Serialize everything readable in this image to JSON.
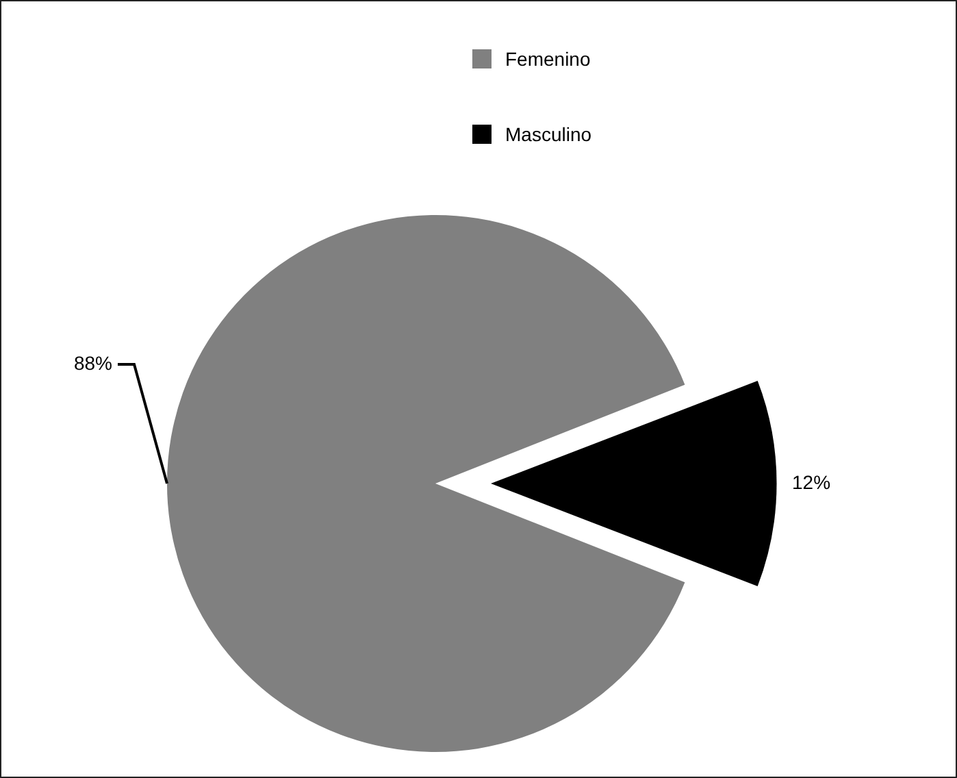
{
  "chart_data": {
    "type": "pie",
    "categories": [
      "Femenino",
      "Masculino"
    ],
    "values": [
      88,
      12
    ],
    "colors": [
      "#808080",
      "#000000"
    ],
    "value_labels": [
      "88%",
      "12%"
    ],
    "legend": "top"
  }
}
